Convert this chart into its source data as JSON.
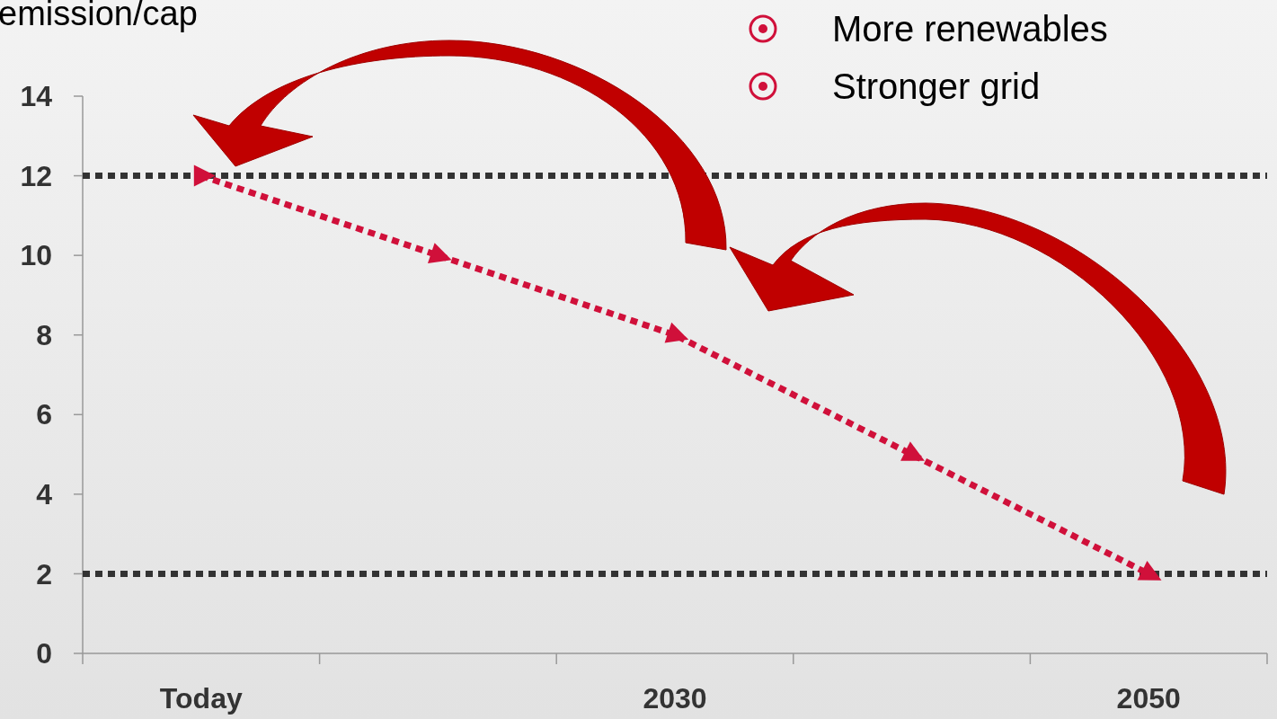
{
  "chart_data": {
    "type": "line",
    "ylabel": "emission/cap",
    "categories": [
      "Today",
      null,
      "2030",
      null,
      "2050"
    ],
    "series": [
      {
        "color": "#d0103a",
        "values": [
          12,
          10,
          8,
          5,
          2
        ]
      }
    ],
    "line_style": "dotted",
    "marker": "triangle",
    "ylim": [
      0,
      14
    ],
    "yticks": [
      0,
      2,
      4,
      6,
      8,
      10,
      12,
      14
    ],
    "grid": false,
    "ref_lines": [
      {
        "axis": "y",
        "value": 12,
        "color": "#333333",
        "line_style": "dotted"
      },
      {
        "axis": "y",
        "value": 2,
        "color": "#333333",
        "line_style": "dotted"
      }
    ],
    "annotations": [
      "More renewables",
      "Stronger grid"
    ]
  }
}
